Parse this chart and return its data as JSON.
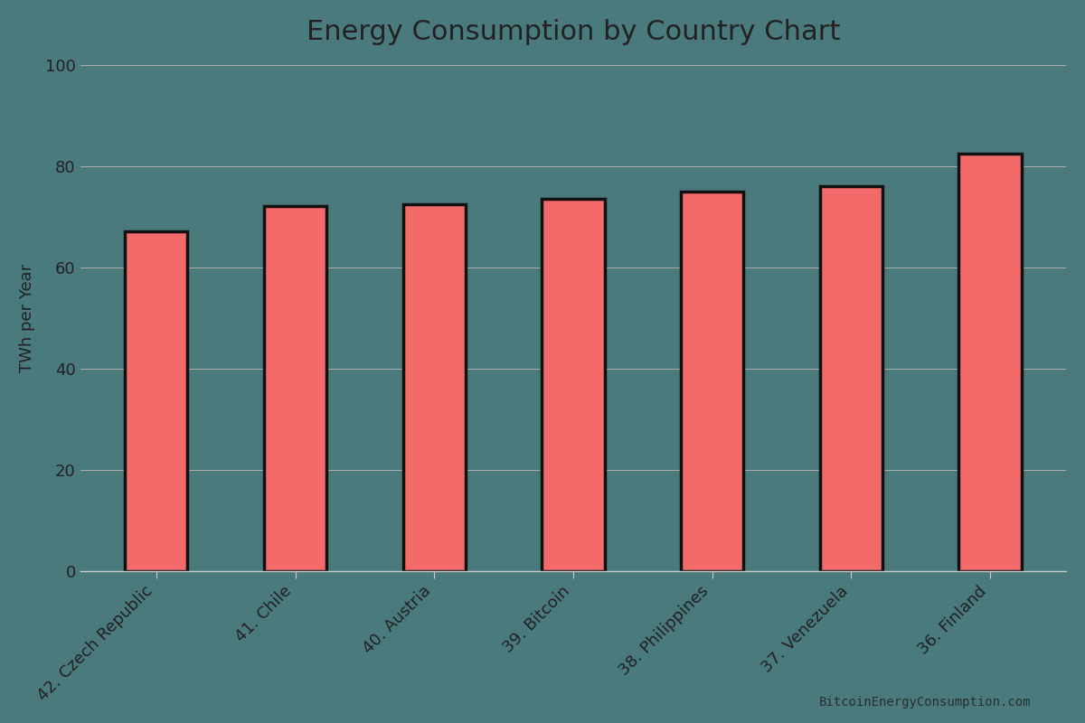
{
  "title": "Energy Consumption by Country Chart",
  "ylabel": "TWh per Year",
  "categories": [
    "42. Czech Republic",
    "41. Chile",
    "40. Austria",
    "39. Bitcoin",
    "38. Philippines",
    "37. Venezuela",
    "36. Finland"
  ],
  "values": [
    67,
    72,
    72.5,
    73.5,
    75,
    76,
    82.5
  ],
  "bar_color": "#F26A6A",
  "bar_edgecolor": "#111111",
  "background_color": "#4a7a7c",
  "grid_color": "#aaaaaa",
  "text_color": "#222222",
  "spine_color": "#cccccc",
  "title_fontsize": 22,
  "label_fontsize": 13,
  "tick_fontsize": 13,
  "watermark": "BitcoinEnergyConsumption.com",
  "ylim": [
    0,
    100
  ],
  "yticks": [
    0,
    20,
    40,
    60,
    80,
    100
  ],
  "bar_width": 0.45,
  "bar_linewidth": 2.5
}
